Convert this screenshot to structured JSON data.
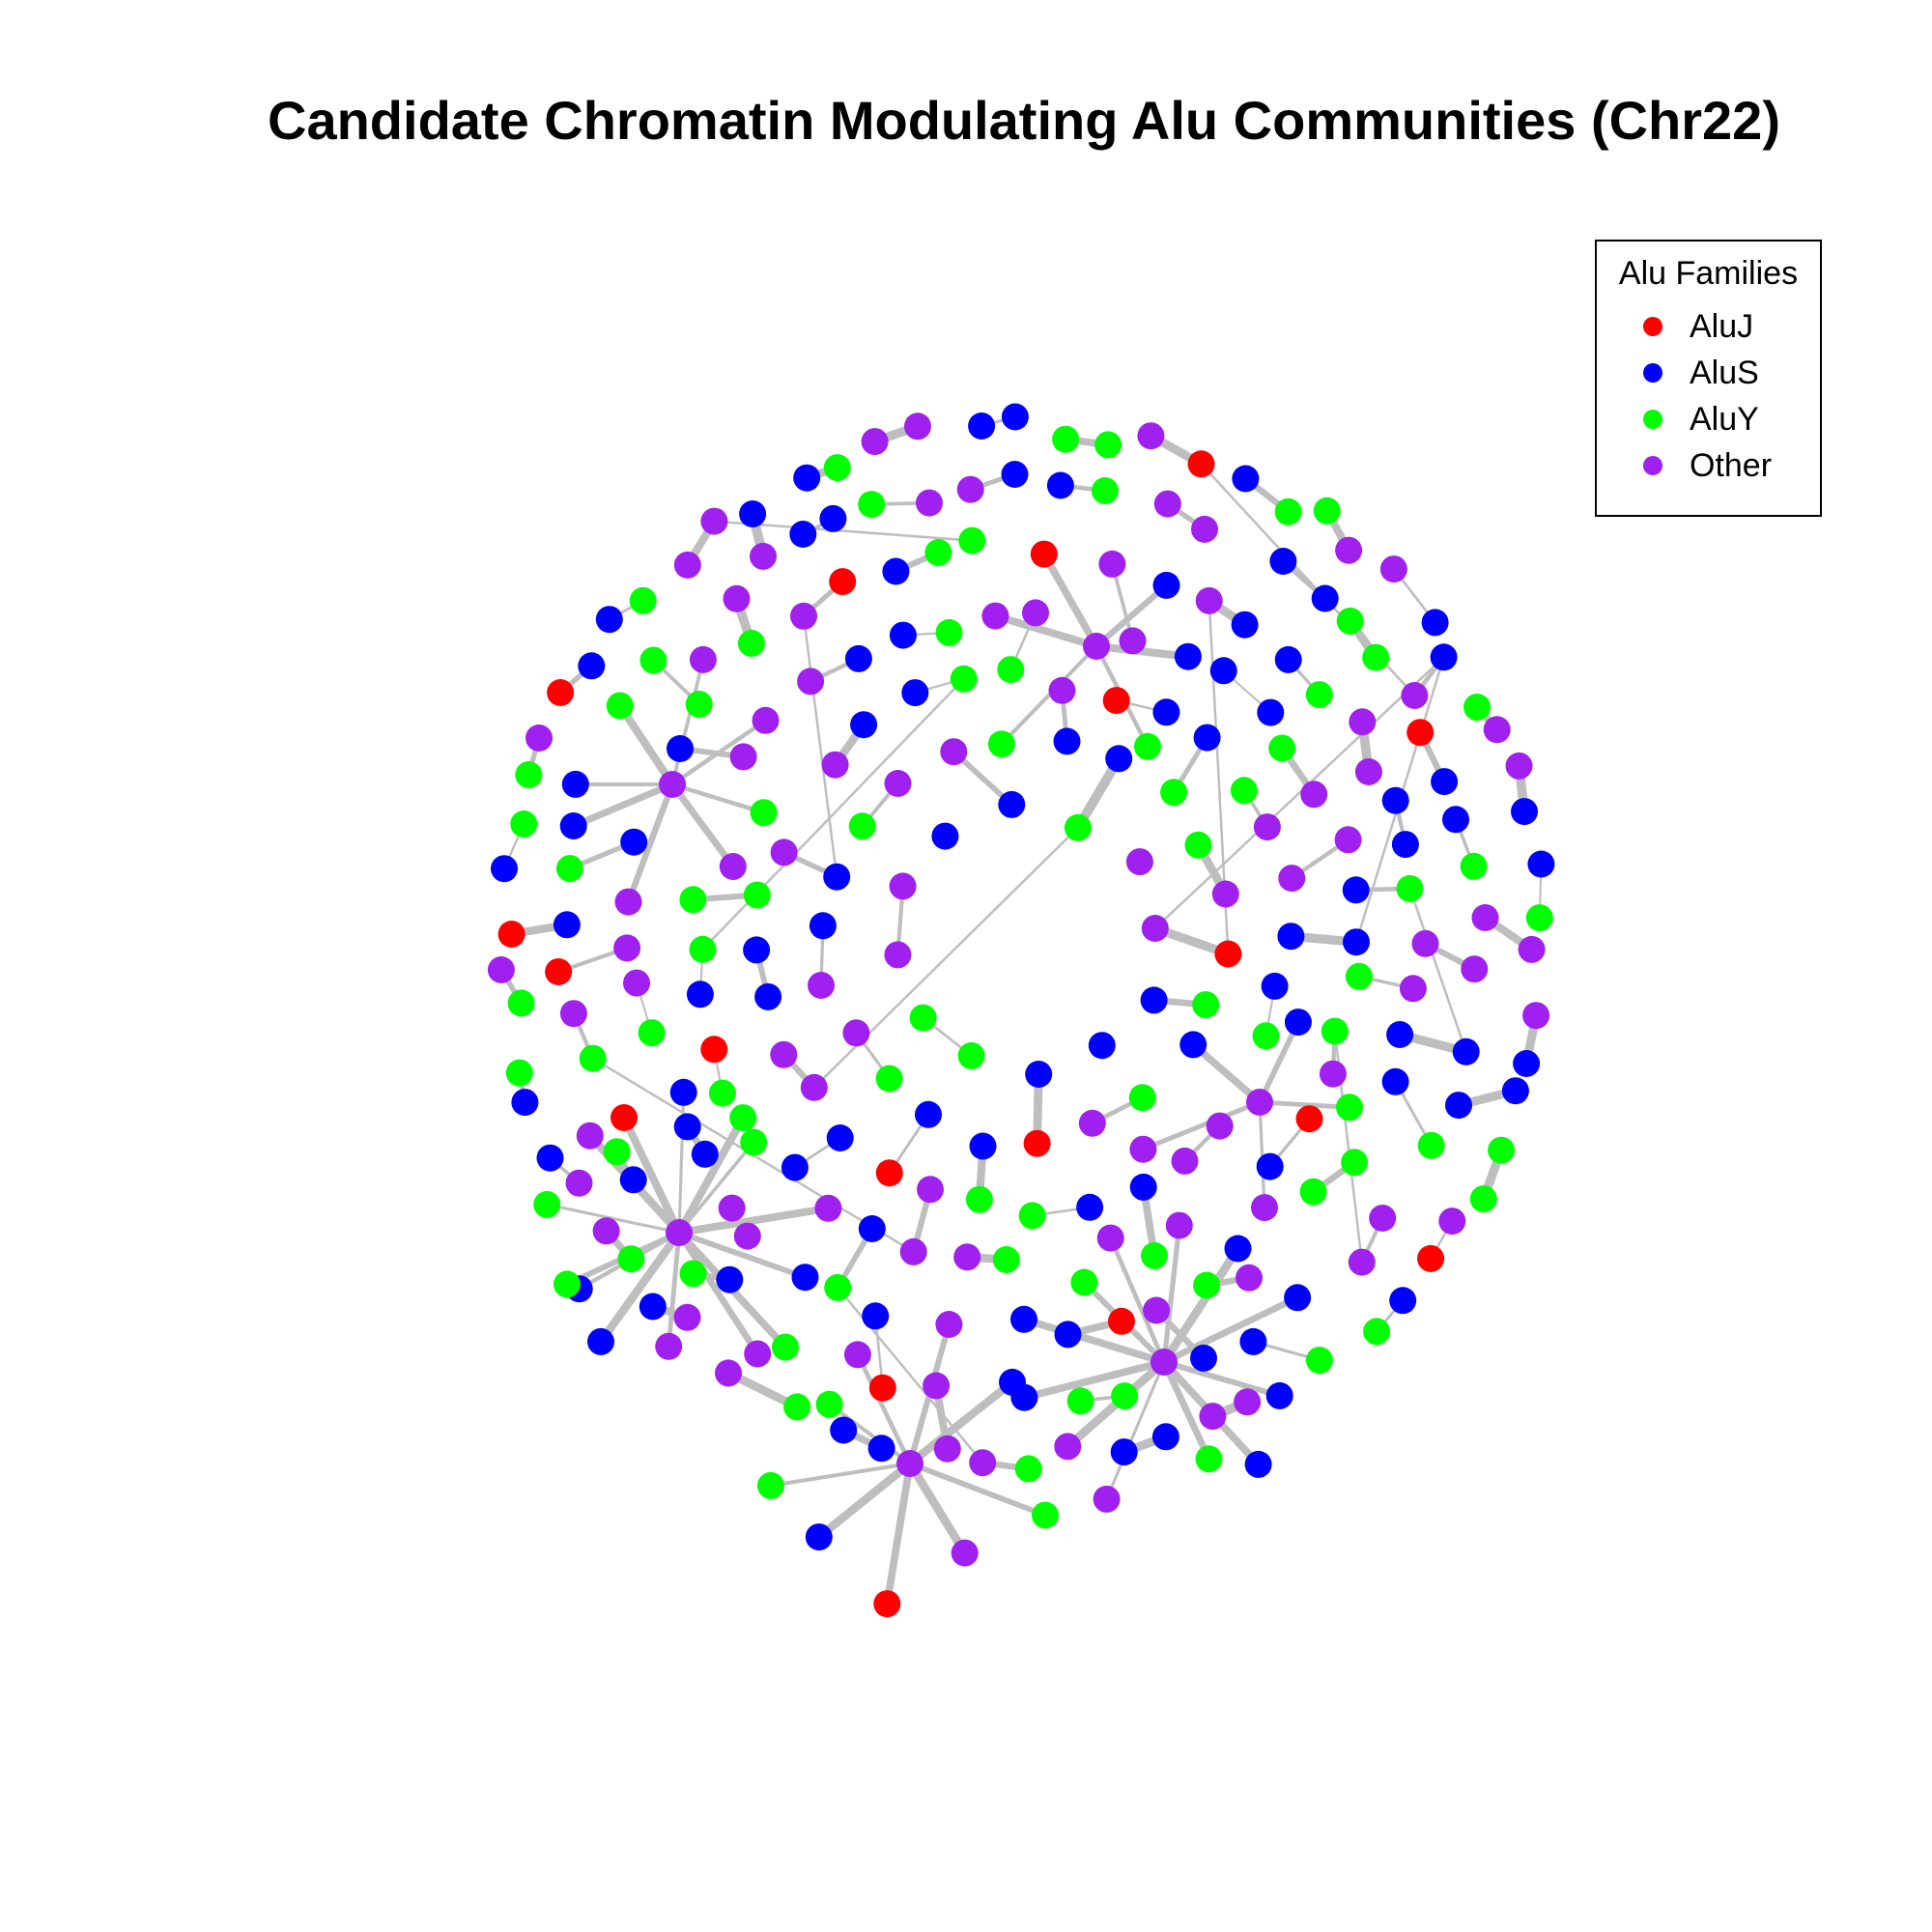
{
  "title": "Candidate Chromatin Modulating Alu Communities (Chr22)",
  "legend": {
    "title": "Alu Families",
    "items": [
      {
        "label": "AluJ",
        "color": "#ff0000"
      },
      {
        "label": "AluS",
        "color": "#0000ff"
      },
      {
        "label": "AluY",
        "color": "#00ff00"
      },
      {
        "label": "Other",
        "color": "#a020f0"
      }
    ]
  },
  "network": {
    "edge_color": "#bebebe"
  }
}
